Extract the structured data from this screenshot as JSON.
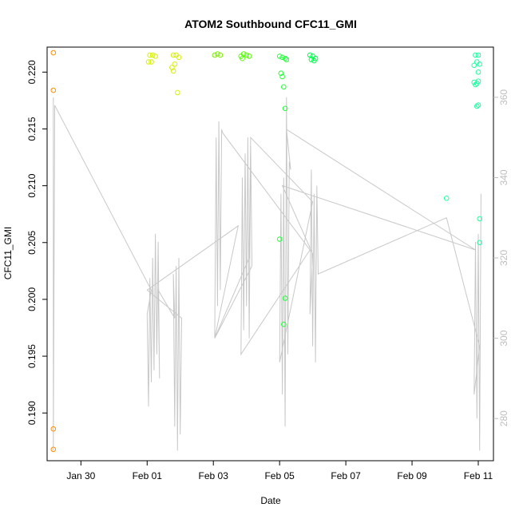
{
  "chart_data": {
    "type": "scatter",
    "title": "ATOM2 Southbound CFC11_GMI",
    "xlabel": "Date",
    "ylabel": "CFC11_GMI",
    "x_ticks": [
      "Jan 30",
      "Feb 01",
      "Feb 03",
      "Feb 05",
      "Feb 07",
      "Feb 09",
      "Feb 11"
    ],
    "y_ticks": [
      "0.190",
      "0.195",
      "0.200",
      "0.205",
      "0.210",
      "0.215",
      "0.220"
    ],
    "y_right_ticks": [
      "280",
      "300",
      "320",
      "340",
      "360"
    ],
    "xlim": [
      "2017-01-28T23:30",
      "2017-02-11T11:00"
    ],
    "ylim": [
      0.1858,
      0.2222
    ],
    "y_right_lim": [
      269.5,
      372.5
    ],
    "y_right_color": "#bdbdbd",
    "points": [
      {
        "x": "2017-01-29T04:00",
        "y": 0.2217,
        "color": "#ff8c00"
      },
      {
        "x": "2017-01-29T04:00",
        "y": 0.2184,
        "color": "#ff8c00"
      },
      {
        "x": "2017-01-29T04:00",
        "y": 0.1886,
        "color": "#ff8c00"
      },
      {
        "x": "2017-01-29T04:00",
        "y": 0.1868,
        "color": "#ff8c00"
      },
      {
        "x": "2017-02-01T02:00",
        "y": 0.2215,
        "color": "#d7f000"
      },
      {
        "x": "2017-02-01T04:00",
        "y": 0.2215,
        "color": "#d7f000"
      },
      {
        "x": "2017-02-01T06:00",
        "y": 0.2214,
        "color": "#d7f000"
      },
      {
        "x": "2017-02-01T01:00",
        "y": 0.2209,
        "color": "#d7f000"
      },
      {
        "x": "2017-02-01T03:00",
        "y": 0.2209,
        "color": "#d7f000"
      },
      {
        "x": "2017-02-01T19:00",
        "y": 0.2215,
        "color": "#d7f000"
      },
      {
        "x": "2017-02-01T21:00",
        "y": 0.2215,
        "color": "#d7f000"
      },
      {
        "x": "2017-02-01T23:00",
        "y": 0.2213,
        "color": "#d7f000"
      },
      {
        "x": "2017-02-01T20:00",
        "y": 0.2207,
        "color": "#d7f000"
      },
      {
        "x": "2017-02-01T18:00",
        "y": 0.2204,
        "color": "#d7f000"
      },
      {
        "x": "2017-02-01T19:00",
        "y": 0.2201,
        "color": "#d7f000"
      },
      {
        "x": "2017-02-01T22:00",
        "y": 0.2182,
        "color": "#d7f000"
      },
      {
        "x": "2017-02-03T01:00",
        "y": 0.2215,
        "color": "#7cf000"
      },
      {
        "x": "2017-02-03T03:00",
        "y": 0.2216,
        "color": "#7cf000"
      },
      {
        "x": "2017-02-03T05:00",
        "y": 0.2215,
        "color": "#7cf000"
      },
      {
        "x": "2017-02-03T20:00",
        "y": 0.2214,
        "color": "#52ff00"
      },
      {
        "x": "2017-02-03T22:00",
        "y": 0.2216,
        "color": "#52ff00"
      },
      {
        "x": "2017-02-04T00:00",
        "y": 0.2215,
        "color": "#52ff00"
      },
      {
        "x": "2017-02-04T02:00",
        "y": 0.2214,
        "color": "#52ff00"
      },
      {
        "x": "2017-02-03T21:00",
        "y": 0.2212,
        "color": "#52ff00"
      },
      {
        "x": "2017-02-05T00:00",
        "y": 0.2214,
        "color": "#22ff3a"
      },
      {
        "x": "2017-02-05T02:00",
        "y": 0.2213,
        "color": "#22ff3a"
      },
      {
        "x": "2017-02-05T04:00",
        "y": 0.2212,
        "color": "#22ff3a"
      },
      {
        "x": "2017-02-05T01:00",
        "y": 0.2199,
        "color": "#22ff3a"
      },
      {
        "x": "2017-02-05T02:00",
        "y": 0.2196,
        "color": "#22ff3a"
      },
      {
        "x": "2017-02-05T05:00",
        "y": 0.2211,
        "color": "#22ff3a"
      },
      {
        "x": "2017-02-05T03:00",
        "y": 0.2187,
        "color": "#22ff3a"
      },
      {
        "x": "2017-02-05T04:00",
        "y": 0.2168,
        "color": "#22ff3a"
      },
      {
        "x": "2017-02-05T00:00",
        "y": 0.2053,
        "color": "#22ff3a"
      },
      {
        "x": "2017-02-05T04:00",
        "y": 0.2001,
        "color": "#22ff3a"
      },
      {
        "x": "2017-02-05T03:00",
        "y": 0.1978,
        "color": "#22ff3a"
      },
      {
        "x": "2017-02-05T22:00",
        "y": 0.2215,
        "color": "#00ff4a"
      },
      {
        "x": "2017-02-06T00:00",
        "y": 0.2214,
        "color": "#00ff4a"
      },
      {
        "x": "2017-02-06T02:00",
        "y": 0.2212,
        "color": "#00ff4a"
      },
      {
        "x": "2017-02-05T23:00",
        "y": 0.2211,
        "color": "#00ff4a"
      },
      {
        "x": "2017-02-06T01:00",
        "y": 0.221,
        "color": "#00ff4a"
      },
      {
        "x": "2017-02-10T01:00",
        "y": 0.2089,
        "color": "#1fffa0"
      },
      {
        "x": "2017-02-10T22:00",
        "y": 0.2215,
        "color": "#1fffa0"
      },
      {
        "x": "2017-02-11T00:00",
        "y": 0.2215,
        "color": "#1fffa0"
      },
      {
        "x": "2017-02-10T21:00",
        "y": 0.2206,
        "color": "#1fffa0"
      },
      {
        "x": "2017-02-10T23:00",
        "y": 0.2209,
        "color": "#1fffa0"
      },
      {
        "x": "2017-02-11T01:00",
        "y": 0.2207,
        "color": "#1fffa0"
      },
      {
        "x": "2017-02-11T00:00",
        "y": 0.22,
        "color": "#1fffa0"
      },
      {
        "x": "2017-02-10T21:00",
        "y": 0.2191,
        "color": "#1fffa0"
      },
      {
        "x": "2017-02-10T22:00",
        "y": 0.2189,
        "color": "#1fffa0"
      },
      {
        "x": "2017-02-10T23:00",
        "y": 0.219,
        "color": "#1fffa0"
      },
      {
        "x": "2017-02-11T00:00",
        "y": 0.2192,
        "color": "#1fffa0"
      },
      {
        "x": "2017-02-10T23:00",
        "y": 0.217,
        "color": "#1fffa0"
      },
      {
        "x": "2017-02-11T00:00",
        "y": 0.2171,
        "color": "#1fffa0"
      },
      {
        "x": "2017-02-11T01:00",
        "y": 0.2071,
        "color": "#1fffa0"
      },
      {
        "x": "2017-02-11T01:00",
        "y": 0.205,
        "color": "#1fffa0"
      }
    ],
    "line_color": "#c8c8c8",
    "line_points": [
      [
        "2017-01-29T04:00",
        360
      ],
      [
        "2017-01-29T04:00",
        272
      ],
      [
        "2017-01-29T05:00",
        358
      ],
      [
        "2017-02-01T03:00",
        312
      ],
      [
        "2017-02-01T00:00",
        306
      ],
      [
        "2017-02-01T01:00",
        283
      ],
      [
        "2017-02-01T02:00",
        315
      ],
      [
        "2017-02-01T03:00",
        289
      ],
      [
        "2017-02-01T04:00",
        320
      ],
      [
        "2017-02-01T05:00",
        292
      ],
      [
        "2017-02-01T06:00",
        326
      ],
      [
        "2017-02-01T07:00",
        296
      ],
      [
        "2017-02-01T08:00",
        324
      ],
      [
        "2017-02-01T09:00",
        290
      ],
      [
        "2017-02-01T08:00",
        312
      ],
      [
        "2017-02-01T20:00",
        305
      ],
      [
        "2017-02-01T19:00",
        316
      ],
      [
        "2017-02-01T20:00",
        278
      ],
      [
        "2017-02-01T21:00",
        318
      ],
      [
        "2017-02-01T22:00",
        272
      ],
      [
        "2017-02-01T23:00",
        320
      ],
      [
        "2017-02-02T00:00",
        276
      ],
      [
        "2017-02-02T01:00",
        305
      ],
      [
        "2017-02-01T00:00",
        312
      ],
      [
        "2017-02-03T18:00",
        328
      ],
      [
        "2017-02-03T01:00",
        300
      ],
      [
        "2017-02-03T02:00",
        350
      ],
      [
        "2017-02-03T03:00",
        308
      ],
      [
        "2017-02-03T04:00",
        354
      ],
      [
        "2017-02-03T05:00",
        312
      ],
      [
        "2017-02-03T06:00",
        352
      ],
      [
        "2017-02-03T07:00",
        351
      ],
      [
        "2017-02-05T22:00",
        322
      ],
      [
        "2017-02-03T20:00",
        296
      ],
      [
        "2017-02-03T21:00",
        340
      ],
      [
        "2017-02-03T22:00",
        302
      ],
      [
        "2017-02-03T23:00",
        346
      ],
      [
        "2017-02-04T00:00",
        308
      ],
      [
        "2017-02-04T01:00",
        350
      ],
      [
        "2017-02-04T02:00",
        300
      ],
      [
        "2017-02-04T03:00",
        348
      ],
      [
        "2017-02-04T04:00",
        318
      ],
      [
        "2017-02-03T01:00",
        300
      ],
      [
        "2017-02-04T02:00",
        320
      ],
      [
        "2017-02-04T03:00",
        350
      ],
      [
        "2017-02-06T00:00",
        334
      ],
      [
        "2017-02-05T00:00",
        294
      ],
      [
        "2017-02-05T01:00",
        336
      ],
      [
        "2017-02-05T02:00",
        286
      ],
      [
        "2017-02-05T03:00",
        340
      ],
      [
        "2017-02-05T04:00",
        278
      ],
      [
        "2017-02-05T05:00",
        360
      ],
      [
        "2017-02-05T06:00",
        296
      ],
      [
        "2017-02-05T07:00",
        344
      ],
      [
        "2017-02-05T08:00",
        342
      ],
      [
        "2017-02-05T05:00",
        352
      ],
      [
        "2017-02-10T22:00",
        322
      ],
      [
        "2017-02-05T02:00",
        338
      ],
      [
        "2017-02-06T00:00",
        321
      ],
      [
        "2017-02-05T22:00",
        306
      ],
      [
        "2017-02-05T23:00",
        342
      ],
      [
        "2017-02-06T00:00",
        298
      ],
      [
        "2017-02-06T01:00",
        336
      ],
      [
        "2017-02-06T02:00",
        294
      ],
      [
        "2017-02-06T03:00",
        338
      ],
      [
        "2017-02-06T04:00",
        316
      ],
      [
        "2017-02-10T01:00",
        330
      ],
      [
        "2017-02-11T01:00",
        298
      ],
      [
        "2017-02-10T21:00",
        286
      ],
      [
        "2017-02-10T22:00",
        324
      ],
      [
        "2017-02-10T23:00",
        280
      ],
      [
        "2017-02-11T00:00",
        326
      ],
      [
        "2017-02-11T01:00",
        272
      ],
      [
        "2017-02-11T02:00",
        336
      ]
    ]
  }
}
